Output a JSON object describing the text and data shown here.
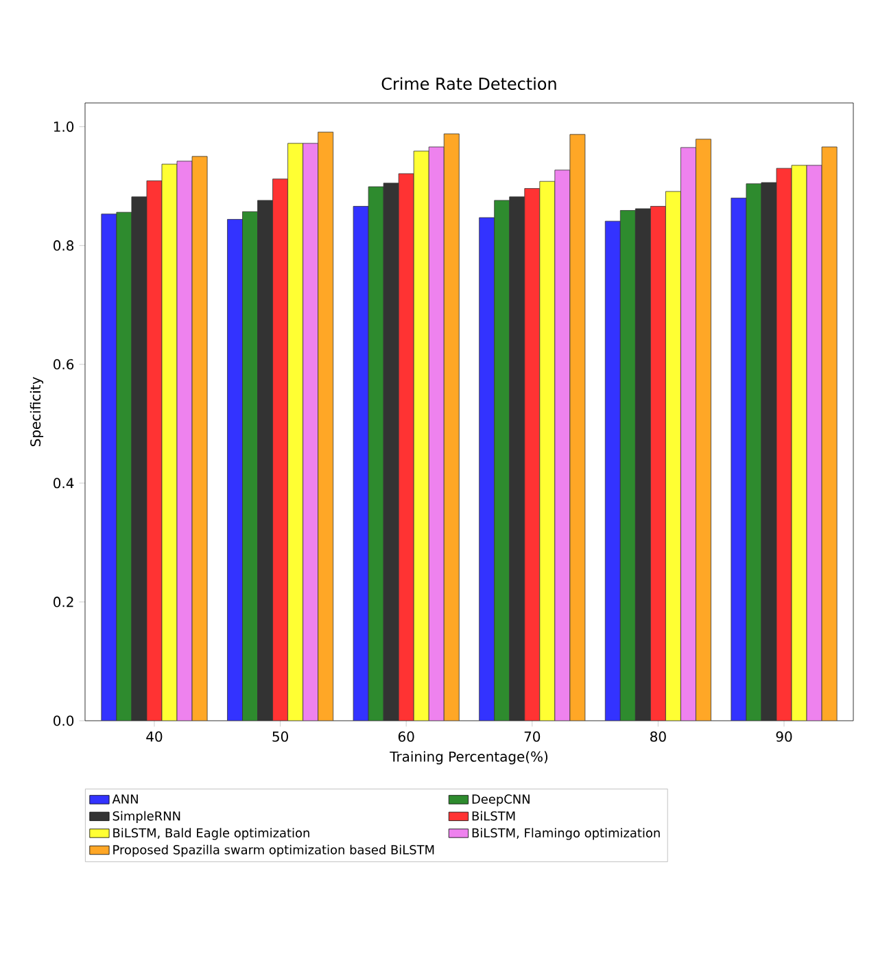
{
  "chart_data": {
    "type": "bar",
    "title": "Crime Rate Detection",
    "xlabel": "Training Percentage(%)",
    "ylabel": "Specificity",
    "categories": [
      "40",
      "50",
      "60",
      "70",
      "80",
      "90"
    ],
    "series": [
      {
        "name": "ANN",
        "color": "#3333ff",
        "values": [
          0.853,
          0.844,
          0.866,
          0.847,
          0.841,
          0.88
        ]
      },
      {
        "name": "DeepCNN",
        "color": "#2e8b2e",
        "values": [
          0.856,
          0.857,
          0.899,
          0.876,
          0.859,
          0.904
        ]
      },
      {
        "name": "SimpleRNN",
        "color": "#333333",
        "values": [
          0.882,
          0.876,
          0.905,
          0.882,
          0.862,
          0.906
        ]
      },
      {
        "name": "BiLSTM",
        "color": "#ff3333",
        "values": [
          0.909,
          0.912,
          0.921,
          0.896,
          0.866,
          0.93
        ]
      },
      {
        "name": "BiLSTM, Bald Eagle optimization",
        "color": "#ffff33",
        "values": [
          0.937,
          0.972,
          0.959,
          0.908,
          0.891,
          0.935
        ]
      },
      {
        "name": "BiLSTM, Flamingo optimization",
        "color": "#ee82ee",
        "values": [
          0.942,
          0.972,
          0.966,
          0.927,
          0.965,
          0.935
        ]
      },
      {
        "name": "Proposed Spazilla swarm optimization based BiLSTM",
        "color": "#ffa726",
        "values": [
          0.95,
          0.991,
          0.988,
          0.987,
          0.979,
          0.966
        ]
      }
    ],
    "ylim": [
      0,
      1.04
    ],
    "yticks": [
      {
        "value": 0,
        "label": "0.0"
      },
      {
        "value": 0.2,
        "label": "0.2"
      },
      {
        "value": 0.4,
        "label": "0.4"
      },
      {
        "value": 0.6,
        "label": "0.6"
      },
      {
        "value": 0.8,
        "label": "0.8"
      },
      {
        "value": 1.0,
        "label": "1.0"
      }
    ],
    "legend": "bottom left",
    "grid": false
  }
}
